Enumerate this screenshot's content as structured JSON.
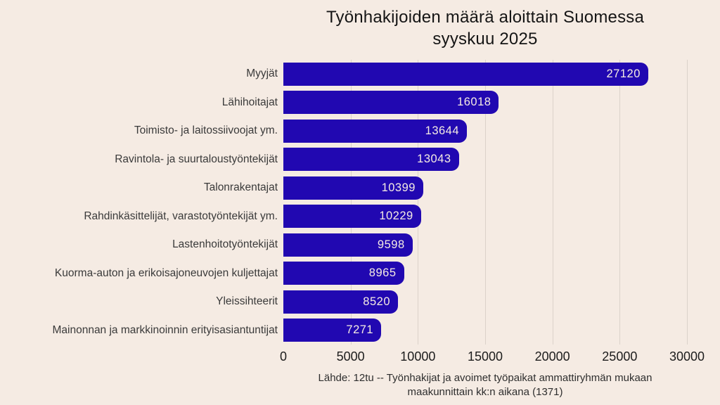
{
  "title": {
    "lines": [
      "Työnhakijoiden määrä aloittain Suomessa",
      "syyskuu 2025"
    ]
  },
  "footer": {
    "lines": [
      "Lähde: 12tu -- Työnhakijat ja avoimet työpaikat ammattiryhmän mukaan",
      "maakunnittain kk:n aikana (1371)"
    ]
  },
  "colors": {
    "background": "#f5ebe3",
    "bar": "#2108b1",
    "bar_label": "#f5ebe3",
    "grid": "#dbd2ca",
    "title_text": "#151515",
    "category_text": "#3a3a3a",
    "tick_text": "#1c1c1c",
    "footer_text": "#2e2e2e"
  },
  "chart_data": {
    "type": "bar",
    "orientation": "horizontal",
    "title": "Työnhakijoiden määrä aloittain Suomessa syyskuu 2025",
    "categories": [
      "Myyjät",
      "Lähihoitajat",
      "Toimisto- ja laitossiivoojat ym.",
      "Ravintola- ja suurtaloustyöntekijät",
      "Talonrakentajat",
      "Rahdinkäsittelijät, varastotyöntekijät ym.",
      "Lastenhoitotyöntekijät",
      "Kuorma-auton ja erikoisajoneuvojen kuljettajat",
      "Yleissihteerit",
      "Mainonnan ja markkinoinnin erityisasiantuntijat"
    ],
    "values": [
      27120,
      16018,
      13644,
      13043,
      10399,
      10229,
      9598,
      8965,
      8520,
      7271
    ],
    "xlabel": "",
    "ylabel": "",
    "xlim": [
      0,
      30000
    ],
    "xticks": [
      0,
      5000,
      10000,
      15000,
      20000,
      25000,
      30000
    ],
    "grid": true,
    "legend": false,
    "value_labels": true,
    "source": "Lähde: 12tu -- Työnhakijat ja avoimet työpaikat ammattiryhmän mukaan maakunnittain kk:n aikana (1371)"
  }
}
